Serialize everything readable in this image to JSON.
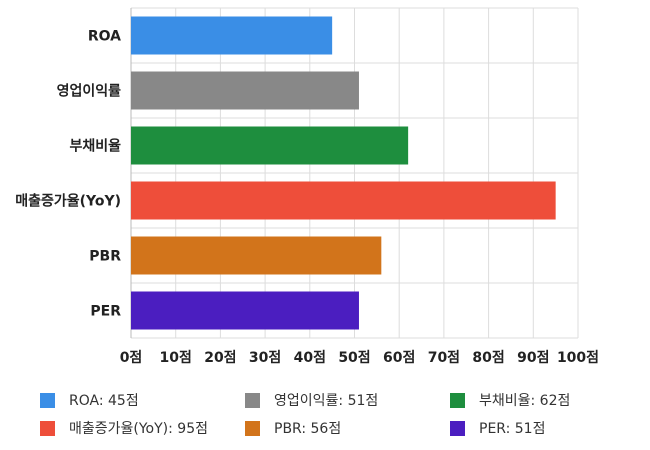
{
  "chart_data": {
    "type": "bar",
    "orientation": "horizontal",
    "categories": [
      "ROA",
      "영업이익률",
      "부채비율",
      "매출증가율(YoY)",
      "PBR",
      "PER"
    ],
    "values": [
      45,
      51,
      62,
      95,
      56,
      51
    ],
    "colors": [
      "#3a8ee6",
      "#888888",
      "#1e8e3e",
      "#ee4e3a",
      "#d2741b",
      "#4b1ec0"
    ],
    "xlim": [
      0,
      100
    ],
    "xticks": [
      0,
      10,
      20,
      30,
      40,
      50,
      60,
      70,
      80,
      90,
      100
    ],
    "tick_suffix": "점",
    "grid": true,
    "legend_position": "bottom",
    "legend": [
      {
        "label": "ROA: 45점",
        "color": "#3a8ee6"
      },
      {
        "label": "영업이익률: 51점",
        "color": "#888888"
      },
      {
        "label": "부채비율: 62점",
        "color": "#1e8e3e"
      },
      {
        "label": "매출증가율(YoY): 95점",
        "color": "#ee4e3a"
      },
      {
        "label": "PBR: 56점",
        "color": "#d2741b"
      },
      {
        "label": "PER: 51점",
        "color": "#4b1ec0"
      }
    ]
  }
}
